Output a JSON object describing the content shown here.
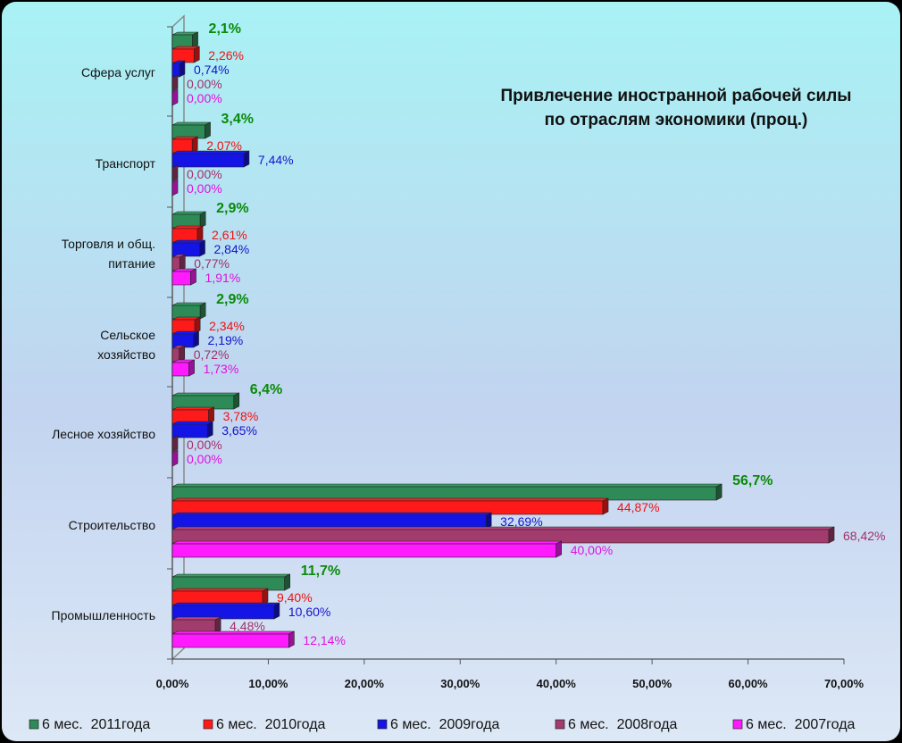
{
  "chart_data": {
    "type": "bar",
    "orientation": "horizontal",
    "title": "Привлечение иностранной рабочей силы\nпо отраслям экономики (проц.)",
    "title_lines": [
      "Привлечение иностранной рабочей силы",
      "по отраслям экономики (проц.)"
    ],
    "xlabel": "",
    "ylabel": "",
    "xlim": [
      0,
      70
    ],
    "xticks": [
      "0,00%",
      "10,00%",
      "20,00%",
      "30,00%",
      "40,00%",
      "50,00%",
      "60,00%",
      "70,00%"
    ],
    "grid": false,
    "legend_position": "bottom",
    "categories": [
      {
        "lines": [
          "Сфера услуг"
        ]
      },
      {
        "lines": [
          "Транспорт"
        ]
      },
      {
        "lines": [
          "Торговля и общ.",
          "питание"
        ]
      },
      {
        "lines": [
          "Сельское",
          "хозяйство"
        ]
      },
      {
        "lines": [
          "Лесное хозяйство"
        ]
      },
      {
        "lines": [
          "Строительство"
        ]
      },
      {
        "lines": [
          "Промышленность"
        ]
      }
    ],
    "series": [
      {
        "name": "6 мес.  2011года",
        "color": "#2e8b57",
        "label_color": "#0a8a0a",
        "bold": true,
        "values": [
          2.1,
          3.4,
          2.9,
          2.9,
          6.4,
          56.7,
          11.7
        ],
        "labels": [
          "2,1%",
          "3,4%",
          "2,9%",
          "2,9%",
          "6,4%",
          "56,7%",
          "11,7%"
        ]
      },
      {
        "name": "6 мес.  2010года",
        "color": "#ff1a1a",
        "label_color": "#ee1111",
        "bold": false,
        "values": [
          2.26,
          2.07,
          2.61,
          2.34,
          3.78,
          44.87,
          9.4
        ],
        "labels": [
          "2,26%",
          "2,07%",
          "2,61%",
          "2,34%",
          "3,78%",
          "44,87%",
          "9,40%"
        ]
      },
      {
        "name": "6 мес.  2009года",
        "color": "#1414e6",
        "label_color": "#1414cc",
        "bold": false,
        "values": [
          0.74,
          7.44,
          2.84,
          2.19,
          3.65,
          32.69,
          10.6
        ],
        "labels": [
          "0,74%",
          "7,44%",
          "2,84%",
          "2,19%",
          "3,65%",
          "32,69%",
          "10,60%"
        ]
      },
      {
        "name": "6 мес.  2008года",
        "color": "#a23c6e",
        "label_color": "#a0306a",
        "bold": false,
        "values": [
          0.0,
          0.0,
          0.77,
          0.72,
          0.0,
          68.42,
          4.48
        ],
        "labels": [
          "0,00%",
          "0,00%",
          "0,77%",
          "0,72%",
          "0,00%",
          "68,42%",
          "4,48%"
        ]
      },
      {
        "name": "6 мес.  2007года",
        "color": "#ff1aff",
        "label_color": "#e010e0",
        "bold": false,
        "values": [
          0.0,
          0.0,
          1.91,
          1.73,
          0.0,
          40.0,
          12.14
        ],
        "labels": [
          "0,00%",
          "0,00%",
          "1,91%",
          "1,73%",
          "0,00%",
          "40,00%",
          "12,14%"
        ]
      }
    ]
  }
}
